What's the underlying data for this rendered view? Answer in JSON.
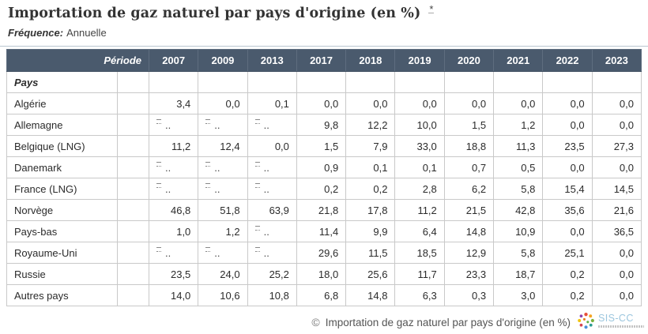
{
  "header": {
    "title": "Importation de gaz naturel par pays d'origine (en %)",
    "footnote_marker": "*",
    "frequency_label": "Fréquence:",
    "frequency_value": "Annuelle"
  },
  "table": {
    "period_header": "Période",
    "years": [
      "2007",
      "2009",
      "2013",
      "2017",
      "2018",
      "2019",
      "2020",
      "2021",
      "2022",
      "2023"
    ],
    "row_dimension_label": "Pays",
    "missing_value_symbol": "..",
    "rows": [
      {
        "label": "Algérie",
        "values": [
          "3,4",
          "0,0",
          "0,1",
          "0,0",
          "0,0",
          "0,0",
          "0,0",
          "0,0",
          "0,0",
          "0,0"
        ]
      },
      {
        "label": "Allemagne",
        "values": [
          "..",
          "..",
          "..",
          "9,8",
          "12,2",
          "10,0",
          "1,5",
          "1,2",
          "0,0",
          "0,0"
        ]
      },
      {
        "label": "Belgique (LNG)",
        "values": [
          "11,2",
          "12,4",
          "0,0",
          "1,5",
          "7,9",
          "33,0",
          "18,8",
          "11,3",
          "23,5",
          "27,3"
        ]
      },
      {
        "label": "Danemark",
        "values": [
          "..",
          "..",
          "..",
          "0,9",
          "0,1",
          "0,1",
          "0,7",
          "0,5",
          "0,0",
          "0,0"
        ]
      },
      {
        "label": "France (LNG)",
        "values": [
          "..",
          "..",
          "..",
          "0,2",
          "0,2",
          "2,8",
          "6,2",
          "5,8",
          "15,4",
          "14,5"
        ]
      },
      {
        "label": "Norvège",
        "values": [
          "46,8",
          "51,8",
          "63,9",
          "21,8",
          "17,8",
          "11,2",
          "21,5",
          "42,8",
          "35,6",
          "21,6"
        ]
      },
      {
        "label": "Pays-bas",
        "values": [
          "1,0",
          "1,2",
          "..",
          "11,4",
          "9,9",
          "6,4",
          "14,8",
          "10,9",
          "0,0",
          "36,5"
        ]
      },
      {
        "label": "Royaume-Uni",
        "values": [
          "..",
          "..",
          "..",
          "29,6",
          "11,5",
          "18,5",
          "12,9",
          "5,8",
          "25,1",
          "0,0"
        ]
      },
      {
        "label": "Russie",
        "values": [
          "23,5",
          "24,0",
          "25,2",
          "18,0",
          "25,6",
          "11,7",
          "23,3",
          "18,7",
          "0,2",
          "0,0"
        ]
      },
      {
        "label": "Autres pays",
        "values": [
          "14,0",
          "10,6",
          "10,8",
          "6,8",
          "14,8",
          "6,3",
          "0,3",
          "3,0",
          "0,2",
          "0,0"
        ]
      }
    ]
  },
  "footer": {
    "copyright_symbol": "©",
    "source_text": "Importation de gaz naturel par pays d'origine (en %)",
    "logo_text": "SIS-CC"
  },
  "colors": {
    "header_bg": "#4a5a6d",
    "header_text": "#ffffff",
    "cell_border": "#c9c9c9",
    "title_text": "#333333",
    "footer_text": "#555555",
    "logo_blue": "#9cc6de"
  },
  "chart_data": {
    "type": "table",
    "title": "Importation de gaz naturel par pays d'origine (en %)",
    "frequency": "Annuelle",
    "unit": "%",
    "columns": [
      "2007",
      "2009",
      "2013",
      "2017",
      "2018",
      "2019",
      "2020",
      "2021",
      "2022",
      "2023"
    ],
    "row_dimension": "Pays",
    "missing_shown_as": "..",
    "rows": [
      {
        "pays": "Algérie",
        "values": [
          3.4,
          0.0,
          0.1,
          0.0,
          0.0,
          0.0,
          0.0,
          0.0,
          0.0,
          0.0
        ]
      },
      {
        "pays": "Allemagne",
        "values": [
          null,
          null,
          null,
          9.8,
          12.2,
          10.0,
          1.5,
          1.2,
          0.0,
          0.0
        ]
      },
      {
        "pays": "Belgique (LNG)",
        "values": [
          11.2,
          12.4,
          0.0,
          1.5,
          7.9,
          33.0,
          18.8,
          11.3,
          23.5,
          27.3
        ]
      },
      {
        "pays": "Danemark",
        "values": [
          null,
          null,
          null,
          0.9,
          0.1,
          0.1,
          0.7,
          0.5,
          0.0,
          0.0
        ]
      },
      {
        "pays": "France (LNG)",
        "values": [
          null,
          null,
          null,
          0.2,
          0.2,
          2.8,
          6.2,
          5.8,
          15.4,
          14.5
        ]
      },
      {
        "pays": "Norvège",
        "values": [
          46.8,
          51.8,
          63.9,
          21.8,
          17.8,
          11.2,
          21.5,
          42.8,
          35.6,
          21.6
        ]
      },
      {
        "pays": "Pays-bas",
        "values": [
          1.0,
          1.2,
          null,
          11.4,
          9.9,
          6.4,
          14.8,
          10.9,
          0.0,
          36.5
        ]
      },
      {
        "pays": "Royaume-Uni",
        "values": [
          null,
          null,
          null,
          29.6,
          11.5,
          18.5,
          12.9,
          5.8,
          25.1,
          0.0
        ]
      },
      {
        "pays": "Russie",
        "values": [
          23.5,
          24.0,
          25.2,
          18.0,
          25.6,
          11.7,
          23.3,
          18.7,
          0.2,
          0.0
        ]
      },
      {
        "pays": "Autres pays",
        "values": [
          14.0,
          10.6,
          10.8,
          6.8,
          14.8,
          6.3,
          0.3,
          3.0,
          0.2,
          0.0
        ]
      }
    ]
  }
}
